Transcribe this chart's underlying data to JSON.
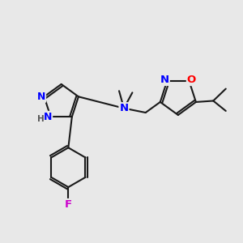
{
  "bg_color": "#e8e8e8",
  "bond_color": "#1a1a1a",
  "bond_width": 1.5,
  "atom_colors": {
    "N": "#0000ff",
    "O": "#ff0000",
    "F": "#cc00cc",
    "H": "#1a1a1a"
  },
  "fig_width": 3.0,
  "fig_height": 3.0,
  "dpi": 100,
  "xlim": [
    0,
    10
  ],
  "ylim": [
    0,
    10
  ]
}
